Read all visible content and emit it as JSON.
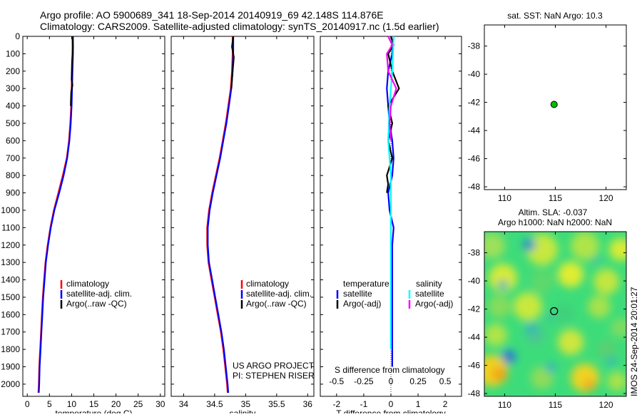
{
  "title_line1": "Argo profile: AO 5900689_341 18-Sep-2014 20140919_69 42.148S 114.876E",
  "title_line2": "Climatology: CARS2009. Satellite-adjusted climatology: synTS_20140917.nc (1.5d earlier)",
  "credit": "US ARGO PROJECT",
  "pi": "PI: STEPHEN RISER",
  "watermark": "IMOS 24-Sep-2014 20:01:27",
  "colors": {
    "climatology": "#ff0000",
    "satellite": "#0000ff",
    "argo": "#000000",
    "sat_salinity": "#00ffff",
    "argo_salinity_adj": "#ff00ff",
    "marker": "#00c000"
  },
  "chart_data": [
    {
      "type": "line",
      "xlabel": "temperature (deg C)",
      "ylabel": "",
      "xlim": [
        -1,
        31
      ],
      "ylim": [
        2070,
        0
      ],
      "xticks": [
        0,
        5,
        10,
        15,
        20,
        25,
        30
      ],
      "yticks": [
        0,
        100,
        200,
        300,
        400,
        500,
        600,
        700,
        800,
        900,
        1000,
        1100,
        1200,
        1300,
        1400,
        1500,
        1600,
        1700,
        1800,
        1900,
        2000
      ],
      "legend": [
        "climatology",
        "satellite-adj. clim.",
        "Argo(..raw -QC)"
      ],
      "series": [
        {
          "name": "climatology",
          "color": "#ff0000",
          "points": [
            [
              10.2,
              0
            ],
            [
              10.2,
              100
            ],
            [
              10.1,
              200
            ],
            [
              10.0,
              300
            ],
            [
              9.9,
              400
            ],
            [
              9.7,
              500
            ],
            [
              9.4,
              600
            ],
            [
              8.9,
              700
            ],
            [
              8.0,
              800
            ],
            [
              7.0,
              900
            ],
            [
              6.0,
              1000
            ],
            [
              5.2,
              1100
            ],
            [
              4.6,
              1200
            ],
            [
              4.1,
              1300
            ],
            [
              3.8,
              1400
            ],
            [
              3.5,
              1500
            ],
            [
              3.3,
              1600
            ],
            [
              3.1,
              1700
            ],
            [
              2.9,
              1800
            ],
            [
              2.7,
              1900
            ],
            [
              2.6,
              2000
            ],
            [
              2.5,
              2050
            ]
          ]
        },
        {
          "name": "satellite-adj. clim.",
          "color": "#0000ff",
          "points": [
            [
              10.3,
              0
            ],
            [
              10.3,
              100
            ],
            [
              10.2,
              200
            ],
            [
              10.1,
              300
            ],
            [
              10.0,
              400
            ],
            [
              9.8,
              500
            ],
            [
              9.5,
              600
            ],
            [
              9.0,
              700
            ],
            [
              8.2,
              800
            ],
            [
              7.2,
              900
            ],
            [
              6.1,
              1000
            ],
            [
              5.3,
              1100
            ],
            [
              4.7,
              1200
            ],
            [
              4.2,
              1300
            ],
            [
              3.9,
              1400
            ],
            [
              3.6,
              1500
            ],
            [
              3.4,
              1600
            ],
            [
              3.2,
              1700
            ],
            [
              3.0,
              1800
            ],
            [
              2.8,
              1900
            ],
            [
              2.7,
              2000
            ],
            [
              2.6,
              2050
            ]
          ]
        },
        {
          "name": "Argo(..raw -QC)",
          "color": "#000000",
          "points": [
            [
              10.2,
              0
            ],
            [
              10.3,
              60
            ],
            [
              10.1,
              150
            ],
            [
              10.0,
              250
            ],
            [
              10.2,
              280
            ],
            [
              9.9,
              320
            ],
            [
              9.8,
              400
            ]
          ]
        }
      ]
    },
    {
      "type": "line",
      "xlabel": "salinity",
      "ylabel": "",
      "xlim": [
        33.8,
        36.1
      ],
      "ylim": [
        2070,
        0
      ],
      "xticks": [
        34,
        34.5,
        35,
        35.5,
        36
      ],
      "legend": [
        "climatology",
        "satellite-adj. clim.",
        "Argo(..raw -QC)"
      ],
      "series": [
        {
          "name": "climatology",
          "color": "#ff0000",
          "points": [
            [
              34.79,
              0
            ],
            [
              34.79,
              100
            ],
            [
              34.78,
              200
            ],
            [
              34.76,
              300
            ],
            [
              34.72,
              400
            ],
            [
              34.68,
              500
            ],
            [
              34.63,
              600
            ],
            [
              34.58,
              700
            ],
            [
              34.52,
              800
            ],
            [
              34.46,
              900
            ],
            [
              34.41,
              1000
            ],
            [
              34.38,
              1100
            ],
            [
              34.38,
              1200
            ],
            [
              34.4,
              1300
            ],
            [
              34.45,
              1400
            ],
            [
              34.5,
              1500
            ],
            [
              34.55,
              1600
            ],
            [
              34.6,
              1700
            ],
            [
              34.64,
              1800
            ],
            [
              34.67,
              1900
            ],
            [
              34.7,
              2000
            ],
            [
              34.71,
              2050
            ]
          ]
        },
        {
          "name": "satellite-adj. clim.",
          "color": "#0000ff",
          "points": [
            [
              34.8,
              0
            ],
            [
              34.8,
              100
            ],
            [
              34.79,
              200
            ],
            [
              34.77,
              300
            ],
            [
              34.73,
              400
            ],
            [
              34.69,
              500
            ],
            [
              34.64,
              600
            ],
            [
              34.59,
              700
            ],
            [
              34.53,
              800
            ],
            [
              34.47,
              900
            ],
            [
              34.42,
              1000
            ],
            [
              34.39,
              1100
            ],
            [
              34.39,
              1200
            ],
            [
              34.41,
              1300
            ],
            [
              34.46,
              1400
            ],
            [
              34.51,
              1500
            ],
            [
              34.56,
              1600
            ],
            [
              34.61,
              1700
            ],
            [
              34.65,
              1800
            ],
            [
              34.68,
              1900
            ],
            [
              34.71,
              2000
            ],
            [
              34.72,
              2050
            ]
          ]
        },
        {
          "name": "Argo(..raw -QC)",
          "color": "#000000",
          "points": [
            [
              34.8,
              0
            ],
            [
              34.78,
              60
            ],
            [
              34.81,
              120
            ],
            [
              34.79,
              200
            ],
            [
              34.77,
              300
            ]
          ]
        }
      ]
    },
    {
      "type": "line",
      "xlabel": "T difference from climatology",
      "top_label": "S difference from climatology",
      "top_ticks": [
        "-0.5",
        "-0.25",
        "0",
        "0.25",
        "0.5"
      ],
      "xlim": [
        -2.6,
        2.6
      ],
      "ylim": [
        2070,
        0
      ],
      "xticks": [
        -2,
        -1,
        0,
        1,
        2
      ],
      "xticklabels": [
        "-2",
        "-1",
        "0",
        "1",
        "2"
      ],
      "legend_groups": [
        {
          "title": "temperature",
          "items": [
            "satellite",
            "Argo(-adj)"
          ]
        },
        {
          "title": "salinity",
          "items": [
            "satellite",
            "Argo(-adj)"
          ]
        }
      ],
      "series": [
        {
          "name": "temperature satellite",
          "color": "#0000ff",
          "points": [
            [
              0.1,
              0
            ],
            [
              0.05,
              100
            ],
            [
              -0.1,
              200
            ],
            [
              -0.15,
              300
            ],
            [
              -0.1,
              400
            ],
            [
              -0.05,
              500
            ],
            [
              0.05,
              600
            ],
            [
              0.1,
              700
            ],
            [
              0.05,
              800
            ],
            [
              -0.1,
              900
            ],
            [
              -0.05,
              1000
            ],
            [
              0.1,
              1100
            ],
            [
              0.05,
              1200
            ],
            [
              0.05,
              1400
            ],
            [
              0.05,
              1600
            ],
            [
              0.05,
              1800
            ],
            [
              0.05,
              1900
            ]
          ]
        },
        {
          "name": "temperature Argo(-adj)",
          "color": "#000000",
          "points": [
            [
              0.0,
              0
            ],
            [
              0.1,
              50
            ],
            [
              -0.1,
              100
            ],
            [
              0.05,
              200
            ],
            [
              0.3,
              300
            ],
            [
              0.1,
              350
            ],
            [
              -0.1,
              400
            ],
            [
              0.05,
              500
            ],
            [
              -0.1,
              600
            ],
            [
              0.05,
              700
            ],
            [
              -0.15,
              800
            ],
            [
              -0.1,
              850
            ],
            [
              -0.15,
              900
            ]
          ]
        },
        {
          "name": "salinity satellite",
          "color": "#00ffff",
          "points": [
            [
              0.1,
              0
            ],
            [
              0.05,
              200
            ],
            [
              -0.05,
              400
            ],
            [
              -0.1,
              600
            ],
            [
              0.0,
              800
            ],
            [
              0.0,
              1000
            ],
            [
              0.0,
              1200
            ],
            [
              0.0,
              1400
            ],
            [
              0.0,
              1600
            ],
            [
              0.0,
              1800
            ]
          ]
        },
        {
          "name": "salinity Argo(-adj)",
          "color": "#ff00ff",
          "points": [
            [
              -0.1,
              0
            ],
            [
              0.05,
              50
            ],
            [
              -0.15,
              100
            ],
            [
              -0.1,
              200
            ],
            [
              0.2,
              300
            ],
            [
              0.1,
              350
            ],
            [
              0.0,
              400
            ],
            [
              -0.05,
              500
            ],
            [
              0.0,
              600
            ]
          ]
        }
      ]
    },
    {
      "type": "scatter",
      "title": "sat. SST: NaN Argo: 10.3",
      "xlim": [
        108,
        122
      ],
      "ylim": [
        -48.2,
        -36.5
      ],
      "xticks": [
        110,
        115,
        120
      ],
      "yticks": [
        -38,
        -40,
        -42,
        -44,
        -46,
        -48
      ],
      "points": [
        {
          "x": 114.876,
          "y": -42.148
        }
      ]
    },
    {
      "type": "heatmap",
      "title_line1": "Altim. SLA: -0.037",
      "title_line2": "Argo h1000: NaN h2000: NaN",
      "xlim": [
        108,
        122
      ],
      "ylim": [
        -48.2,
        -36.5
      ],
      "xticks": [
        110,
        115,
        120
      ],
      "yticks": [
        -38,
        -40,
        -42,
        -44,
        -46,
        -48
      ],
      "marker": {
        "x": 114.876,
        "y": -42.148
      }
    }
  ]
}
